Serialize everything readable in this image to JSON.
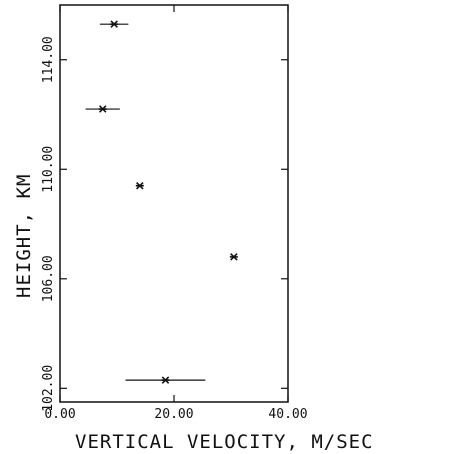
{
  "chart_data": {
    "type": "scatter",
    "title": "",
    "xlabel": "VERTICAL VELOCITY, M/SEC",
    "ylabel": "HEIGHT, KM",
    "xlim": [
      0,
      40
    ],
    "ylim": [
      101.5,
      116
    ],
    "x_ticks": [
      0,
      20,
      40
    ],
    "x_tick_labels": [
      "0.00",
      "20.00",
      "40.00"
    ],
    "y_ticks": [
      102,
      106,
      110,
      114
    ],
    "y_tick_labels": [
      "102.00",
      "106.00",
      "110.00",
      "114.00"
    ],
    "grid": false,
    "marker": "asterisk",
    "points": [
      {
        "x": 9.5,
        "y": 115.3,
        "xerr": 2.5
      },
      {
        "x": 7.5,
        "y": 112.2,
        "xerr": 3.0
      },
      {
        "x": 14.0,
        "y": 109.4,
        "xerr": 0
      },
      {
        "x": 30.5,
        "y": 106.8,
        "xerr": 0
      },
      {
        "x": 18.5,
        "y": 102.3,
        "xerr": 7.0
      }
    ]
  }
}
